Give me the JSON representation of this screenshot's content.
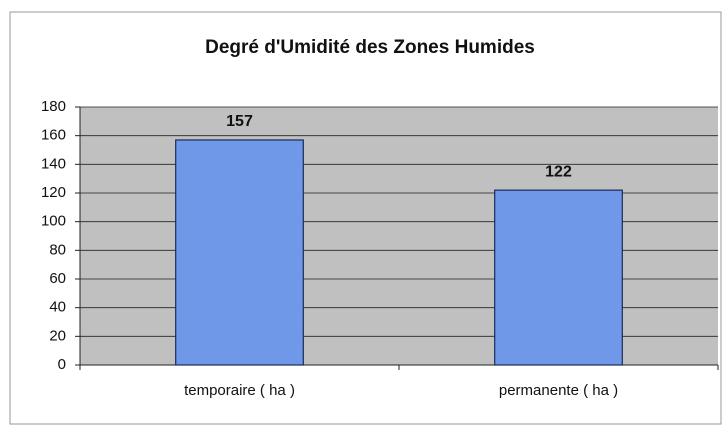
{
  "chart_data": {
    "type": "bar",
    "title": "Degré d'Umidité des Zones Humides",
    "categories": [
      "temporaire ( ha )",
      "permanente ( ha )"
    ],
    "values": [
      157,
      122
    ],
    "color": "#6f98e8",
    "ylim": [
      0,
      180
    ],
    "yticks": [
      0,
      20,
      40,
      60,
      80,
      100,
      120,
      140,
      160,
      180
    ],
    "grid": true
  }
}
